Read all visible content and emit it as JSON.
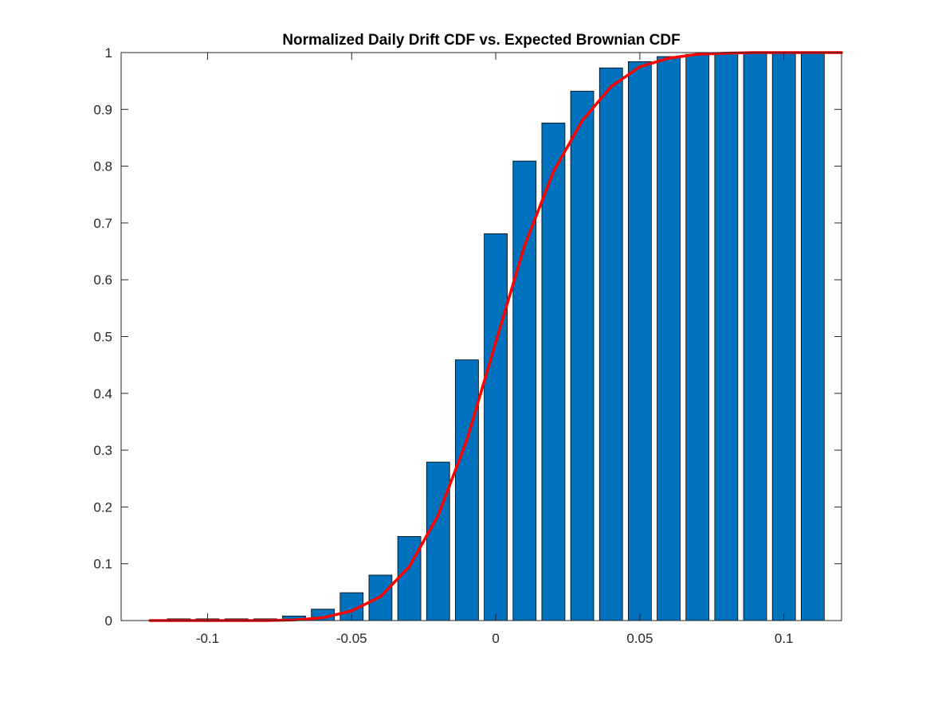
{
  "chart_data": {
    "type": "bar",
    "title": "Normalized Daily Drift CDF vs. Expected Brownian CDF",
    "xlabel": "",
    "ylabel": "",
    "xlim": [
      -0.13,
      0.12
    ],
    "ylim": [
      0,
      1
    ],
    "grid": false,
    "legend": "none",
    "xticks": [
      -0.1,
      -0.05,
      0,
      0.05,
      0.1
    ],
    "xtick_labels": [
      "-0.1",
      "-0.05",
      "0",
      "0.05",
      "0.1"
    ],
    "yticks": [
      0,
      0.1,
      0.2,
      0.3,
      0.4,
      0.5,
      0.6,
      0.7,
      0.8,
      0.9,
      1
    ],
    "ytick_labels": [
      "0",
      "0.1",
      "0.2",
      "0.3",
      "0.4",
      "0.5",
      "0.6",
      "0.7",
      "0.8",
      "0.9",
      "1"
    ],
    "bar_width": 0.008,
    "bars": {
      "x": [
        -0.11,
        -0.1,
        -0.09,
        -0.08,
        -0.07,
        -0.06,
        -0.05,
        -0.04,
        -0.03,
        -0.02,
        -0.01,
        0,
        0.01,
        0.02,
        0.03,
        0.04,
        0.05,
        0.06,
        0.07,
        0.08,
        0.09,
        0.1,
        0.11
      ],
      "values": [
        0.003,
        0.003,
        0.003,
        0.003,
        0.008,
        0.02,
        0.049,
        0.08,
        0.148,
        0.279,
        0.459,
        0.681,
        0.809,
        0.876,
        0.932,
        0.973,
        0.984,
        0.993,
        0.997,
        1.0,
        1.0,
        1.0,
        1.0
      ],
      "color": "#0072BD",
      "edge_color": "#000000"
    },
    "line": {
      "x": [
        -0.12,
        -0.11,
        -0.1,
        -0.09,
        -0.08,
        -0.07,
        -0.06,
        -0.05,
        -0.04,
        -0.03,
        -0.02,
        -0.01,
        0,
        0.01,
        0.02,
        0.03,
        0.04,
        0.05,
        0.06,
        0.07,
        0.08,
        0.09,
        0.1,
        0.11,
        0.12
      ],
      "values": [
        0.0,
        0.0,
        0.0,
        0.0,
        0.0,
        0.001,
        0.005,
        0.017,
        0.042,
        0.095,
        0.185,
        0.318,
        0.49,
        0.66,
        0.79,
        0.88,
        0.94,
        0.975,
        0.99,
        0.997,
        0.999,
        1.0,
        1.0,
        1.0,
        1.0
      ],
      "color": "#FF0000"
    }
  }
}
